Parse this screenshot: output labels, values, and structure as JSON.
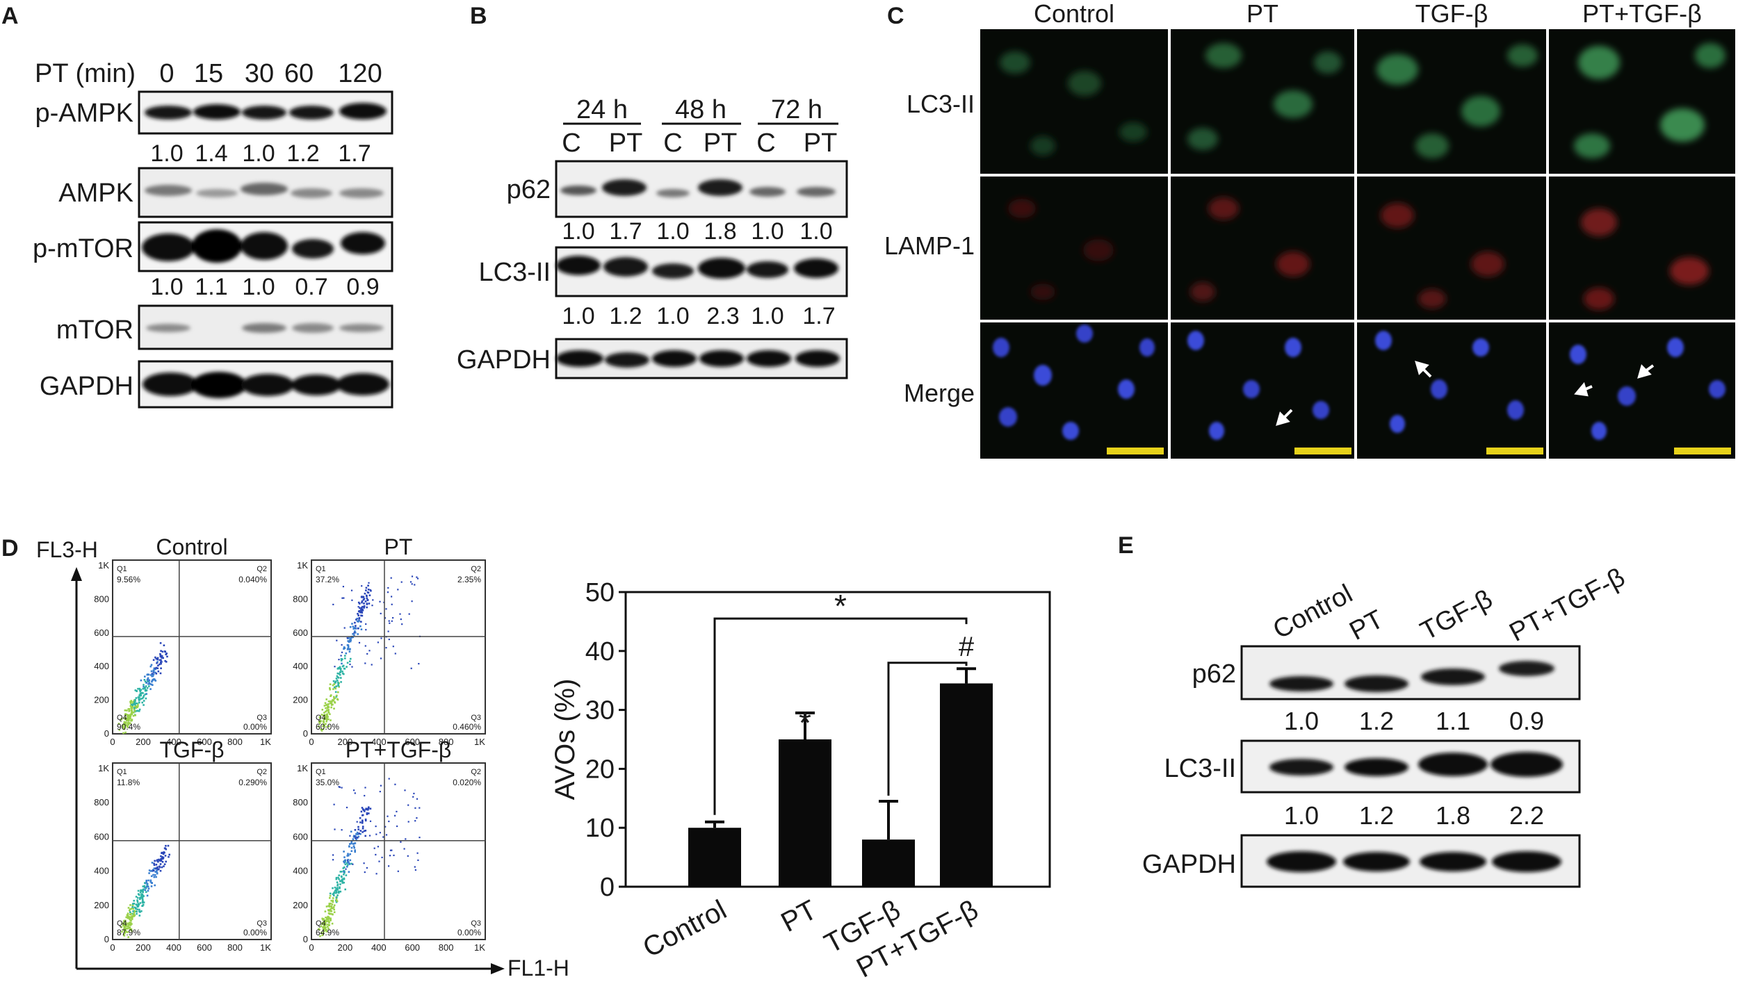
{
  "colors": {
    "panel_bg": "#060a06",
    "blot_band": "#0d0d0d",
    "green_channel": "#2f8a4a",
    "red_channel": "#a02020",
    "blue_nuclei": "#3a4bd8",
    "scale_bar": "#e6d21a"
  },
  "panelA": {
    "letter": "A",
    "time_label": "PT (min)",
    "times": [
      "0",
      "15",
      "30",
      "60",
      "120"
    ],
    "rows": [
      {
        "label": "p-AMPK",
        "quant": [
          "1.0",
          "1.4",
          "1.0",
          "1.2",
          "1.7"
        ]
      },
      {
        "label": "AMPK",
        "quant": []
      },
      {
        "label": "p-mTOR",
        "quant": [
          "1.0",
          "1.1",
          "1.0",
          "0.7",
          "0.9"
        ]
      },
      {
        "label": "mTOR",
        "quant": []
      },
      {
        "label": "GAPDH",
        "quant": []
      }
    ]
  },
  "panelB": {
    "letter": "B",
    "groups": [
      "24 h",
      "48 h",
      "72 h"
    ],
    "lanes": [
      "C",
      "PT",
      "C",
      "PT",
      "C",
      "PT"
    ],
    "rows": [
      {
        "label": "p62",
        "quant": [
          "1.0",
          "1.7",
          "1.0",
          "1.8",
          "1.0",
          "1.0"
        ]
      },
      {
        "label": "LC3-II",
        "quant": [
          "1.0",
          "1.2",
          "1.0",
          "2.3",
          "1.0",
          "1.7"
        ]
      },
      {
        "label": "GAPDH",
        "quant": []
      }
    ]
  },
  "panelC": {
    "letter": "C",
    "columns": [
      "Control",
      "PT",
      "TGF-β",
      "PT+TGF-β"
    ],
    "rows": [
      "LC3-II",
      "LAMP-1",
      "Merge"
    ]
  },
  "panelD": {
    "letter": "D",
    "flow": {
      "y_axis": "FL3-H",
      "x_axis": "FL1-H",
      "tick_labels": [
        "0",
        "200",
        "400",
        "600",
        "800",
        "1K"
      ],
      "plots": [
        {
          "title": "Control",
          "q1": "9.56%",
          "q2": "0.040%",
          "q3": "0.00%",
          "q4": "90.4%"
        },
        {
          "title": "PT",
          "q1": "37.2%",
          "q2": "2.35%",
          "q3": "0.460%",
          "q4": "60.0%"
        },
        {
          "title": "TGF-β",
          "q1": "11.8%",
          "q2": "0.290%",
          "q3": "0.00%",
          "q4": "87.9%"
        },
        {
          "title": "PT+TGF-β",
          "q1": "35.0%",
          "q2": "0.020%",
          "q3": "0.00%",
          "q4": "64.9%"
        }
      ]
    },
    "chart_data": {
      "type": "bar",
      "categories": [
        "Control",
        "PT",
        "TGF-β",
        "PT+TGF-β"
      ],
      "values": [
        10,
        25,
        8,
        34.5
      ],
      "errors": [
        1,
        4.5,
        6.5,
        2.5
      ],
      "ylabel": "AVOs (%)",
      "ylim": [
        0,
        50
      ],
      "yticks": [
        "0",
        "10",
        "20",
        "30",
        "40",
        "50"
      ],
      "marks": [
        "",
        "*",
        "",
        ""
      ],
      "brackets": [
        {
          "from": "Control",
          "to": "PT+TGF-β",
          "mark": "*"
        },
        {
          "from": "TGF-β",
          "to": "PT+TGF-β",
          "mark": "#"
        }
      ]
    }
  },
  "panelE": {
    "letter": "E",
    "lanes": [
      "Control",
      "PT",
      "TGF-β",
      "PT+TGF-β"
    ],
    "rows": [
      {
        "label": "p62",
        "quant": [
          "1.0",
          "1.2",
          "1.1",
          "0.9"
        ]
      },
      {
        "label": "LC3-II",
        "quant": [
          "1.0",
          "1.2",
          "1.8",
          "2.2"
        ]
      },
      {
        "label": "GAPDH",
        "quant": []
      }
    ]
  }
}
